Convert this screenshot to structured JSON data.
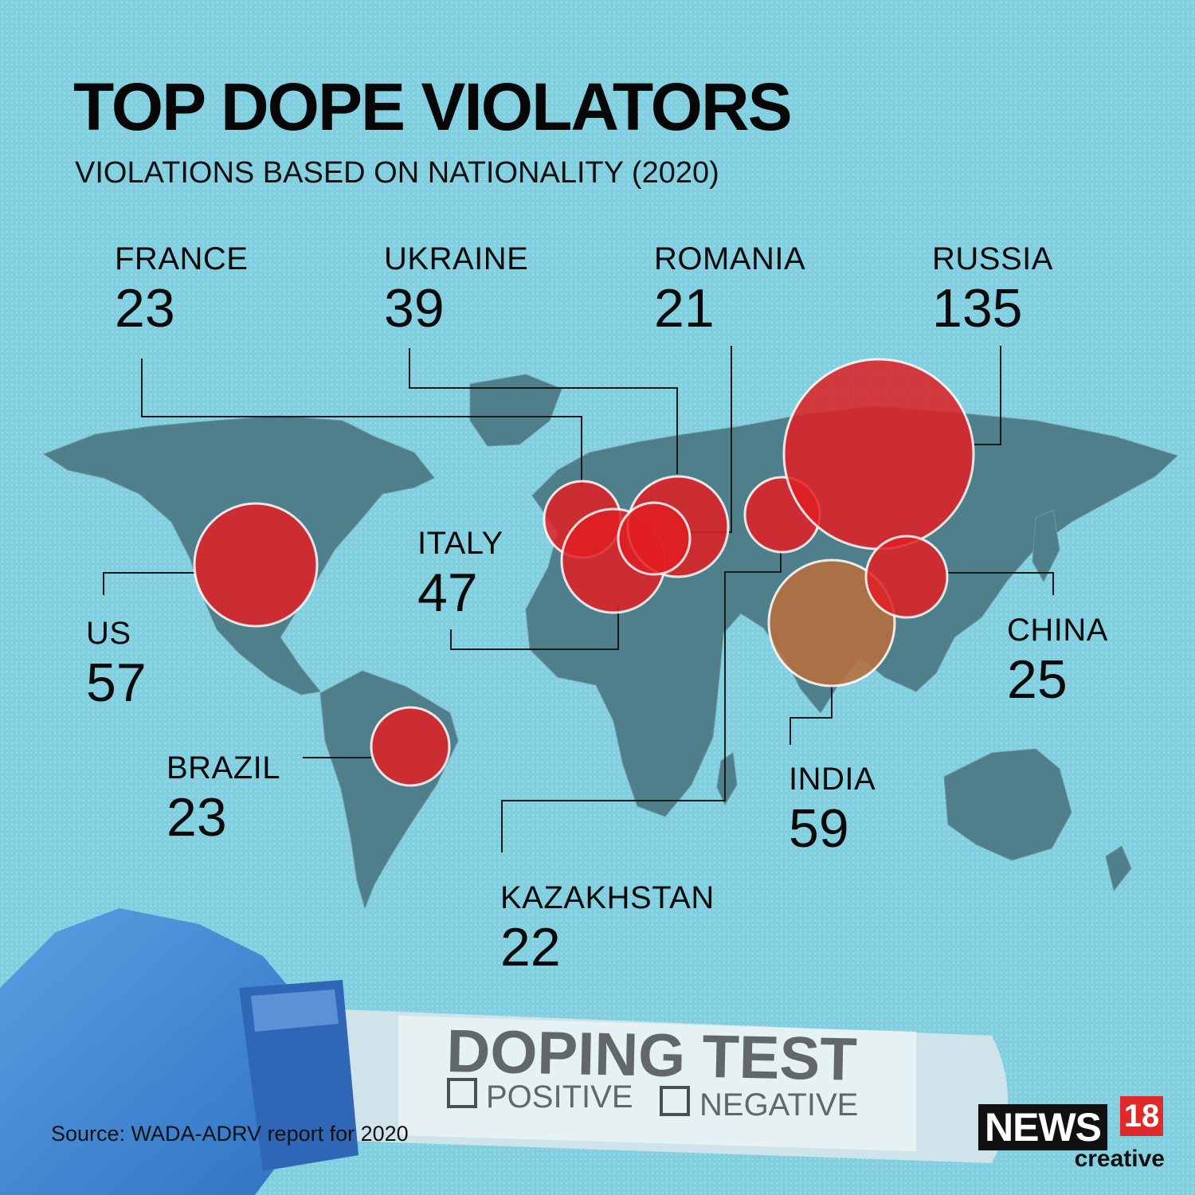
{
  "title": "TOP DOPE VIOLATORS",
  "subtitle": "VIOLATIONS BASED ON NATIONALITY (2020)",
  "source": "Source: WADA-ADRV report for 2020",
  "brand": {
    "name": "NEWS",
    "number": "18",
    "tagline": "creative"
  },
  "tube_label": {
    "title": "DOPING TEST",
    "option_1": "POSITIVE",
    "option_2": "NEGATIVE"
  },
  "colors": {
    "background": "#82cfe0",
    "map": "#4f7f8a",
    "bubble": "#e01e22",
    "highlight_bubble": "#b5703e",
    "leader_line": "#1a1a1a"
  },
  "chart_data": {
    "type": "bubble-map",
    "title": "TOP DOPE VIOLATORS",
    "subtitle": "VIOLATIONS BASED ON NATIONALITY (2020)",
    "series": [
      {
        "country": "FRANCE",
        "value": 23,
        "value_label": "23"
      },
      {
        "country": "UKRAINE",
        "value": 39,
        "value_label": "39"
      },
      {
        "country": "ROMANIA",
        "value": 21,
        "value_label": "21"
      },
      {
        "country": "RUSSIA",
        "value": 135,
        "value_label": "135"
      },
      {
        "country": "ITALY",
        "value": 47,
        "value_label": "47"
      },
      {
        "country": "US",
        "value": 57,
        "value_label": "57"
      },
      {
        "country": "CHINA",
        "value": 25,
        "value_label": "25"
      },
      {
        "country": "BRAZIL",
        "value": 23,
        "value_label": "23"
      },
      {
        "country": "INDIA",
        "value": 59,
        "value_label": "59",
        "highlight": true
      },
      {
        "country": "KAZAKHSTAN",
        "value": 22,
        "value_label": "22"
      }
    ]
  }
}
